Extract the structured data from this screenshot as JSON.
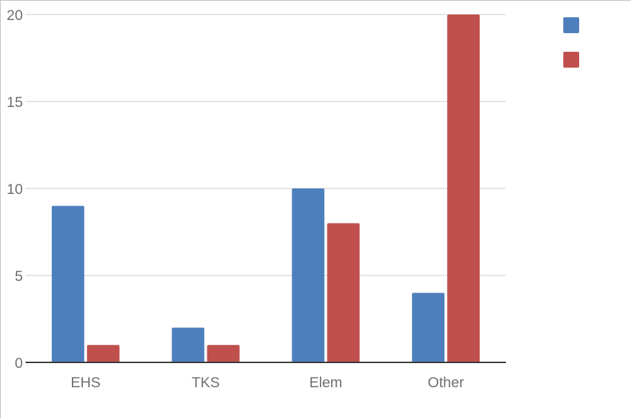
{
  "chart_data": {
    "type": "bar",
    "categories": [
      "EHS",
      "TKS",
      "Elem",
      "Other"
    ],
    "series": [
      {
        "color": "#4e7fbd",
        "values": [
          9,
          2,
          10,
          4
        ]
      },
      {
        "color": "#c0504d",
        "values": [
          1,
          1,
          8,
          20
        ]
      }
    ],
    "ylim": [
      0,
      20
    ],
    "yticks": [
      "0",
      "5",
      "10",
      "15",
      "20"
    ],
    "title": "",
    "xlabel": "",
    "ylabel": "",
    "grid": true,
    "legend": "top-right"
  }
}
